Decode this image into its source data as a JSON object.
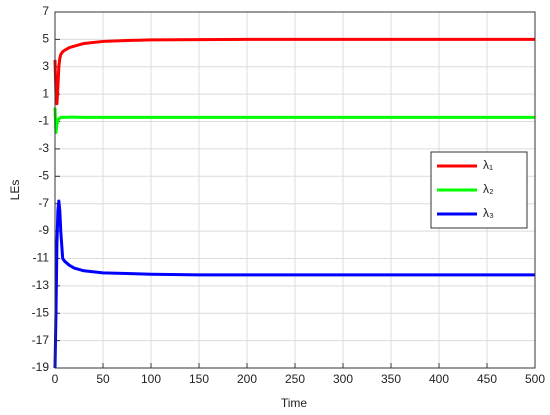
{
  "chart_data": {
    "type": "line",
    "x_label": "Time",
    "y_label": "LEs",
    "x": [
      0,
      1,
      2,
      3,
      4,
      5,
      6,
      8,
      10,
      15,
      20,
      30,
      50,
      75,
      100,
      150,
      200,
      300,
      400,
      500
    ],
    "series": [
      {
        "name": "λ₁",
        "color": "#ff0000",
        "values": [
          3.5,
          1.0,
          0.3,
          1.5,
          3.0,
          3.6,
          3.9,
          4.1,
          4.2,
          4.4,
          4.5,
          4.7,
          4.85,
          4.92,
          4.96,
          4.98,
          5.0,
          5.0,
          5.0,
          5.0
        ]
      },
      {
        "name": "λ₂",
        "color": "#00ff00",
        "values": [
          0,
          -1.8,
          -1.2,
          -0.9,
          -0.8,
          -0.75,
          -0.7,
          -0.7,
          -0.7,
          -0.68,
          -0.68,
          -0.7,
          -0.7,
          -0.7,
          -0.7,
          -0.7,
          -0.7,
          -0.7,
          -0.7,
          -0.7
        ]
      },
      {
        "name": "λ₃",
        "color": "#0000ff",
        "values": [
          -19,
          -15,
          -10,
          -7.5,
          -6.8,
          -7.5,
          -9,
          -11,
          -11.2,
          -11.5,
          -11.7,
          -11.9,
          -12.05,
          -12.1,
          -12.15,
          -12.2,
          -12.2,
          -12.2,
          -12.2,
          -12.2
        ]
      }
    ],
    "xlim": [
      0,
      500
    ],
    "xticks": [
      0,
      50,
      100,
      150,
      200,
      250,
      300,
      350,
      400,
      450,
      500
    ],
    "ylim": [
      -19,
      7
    ],
    "yticks": [
      -19,
      -17,
      -15,
      -13,
      -11,
      -9,
      -7,
      -5,
      -3,
      -1,
      1,
      3,
      5,
      7
    ],
    "grid": true,
    "legend": "east"
  }
}
